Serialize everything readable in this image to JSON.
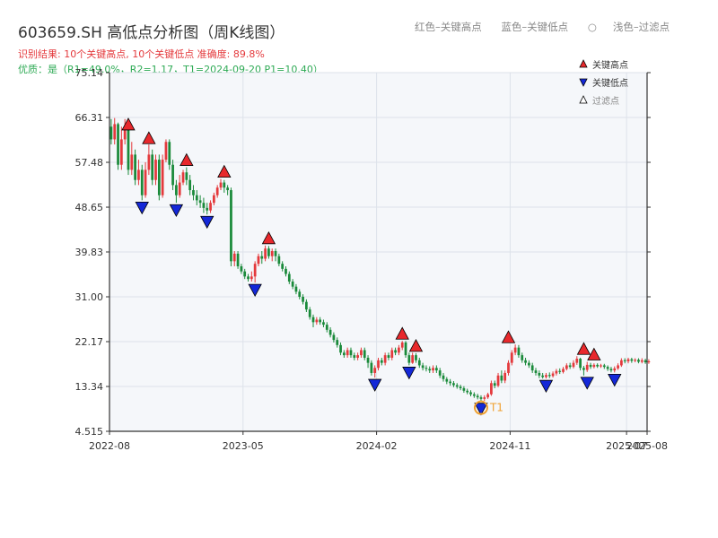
{
  "header": {
    "title": "603659.SH 高低点分析图（周K线图）",
    "result_text": "识别结果: 10个关键高点, 10个关键低点   准确度: 89.8%",
    "quality_text": "优质：是（R1=49.0%，R2=1.17，T1=2024-09-20 P1=10.40）"
  },
  "top_legend": {
    "red": "红色–关键高点",
    "blue": "蓝色–关键低点",
    "gray": "浅色–过滤点"
  },
  "colors": {
    "up": "#e4393c",
    "down": "#1a8a3a",
    "high_marker": "#e8282c",
    "low_marker": "#1428d8",
    "t1_ring": "#f0a030",
    "plot_bg": "#f5f7fa",
    "grid": "#dde2ea",
    "axis": "#333333"
  },
  "chart_data": {
    "type": "candlestick",
    "y_ticks": [
      "4.515",
      "13.34",
      "22.17",
      "31.00",
      "39.83",
      "48.65",
      "57.48",
      "66.31",
      "75.14"
    ],
    "ylim": [
      4.515,
      75.14
    ],
    "x_ticks": [
      "2022-08",
      "2023-05",
      "2024-02",
      "2024-11",
      "2025-07",
      "2025-08"
    ],
    "xlim": [
      0,
      157
    ],
    "x_tick_positions": [
      0,
      39,
      78,
      117,
      151,
      157
    ],
    "legend": [
      {
        "label": "关键高点",
        "marker": "triangle-up"
      },
      {
        "label": "关键低点",
        "marker": "triangle-down"
      },
      {
        "label": "过滤点",
        "marker": "triangle-up-hollow"
      }
    ],
    "annotation": {
      "label": "T1",
      "x": 108,
      "y": 10.4
    },
    "key_highs": [
      {
        "x": 5,
        "y": 63.5
      },
      {
        "x": 11,
        "y": 60.8
      },
      {
        "x": 22,
        "y": 56.5
      },
      {
        "x": 33,
        "y": 54.2
      },
      {
        "x": 46,
        "y": 41.1
      },
      {
        "x": 85,
        "y": 22.3
      },
      {
        "x": 89,
        "y": 19.9
      },
      {
        "x": 116,
        "y": 21.6
      },
      {
        "x": 138,
        "y": 19.3
      },
      {
        "x": 141,
        "y": 18.2
      }
    ],
    "key_lows": [
      {
        "x": 9,
        "y": 50.0
      },
      {
        "x": 19,
        "y": 49.5
      },
      {
        "x": 28,
        "y": 47.2
      },
      {
        "x": 42,
        "y": 33.8
      },
      {
        "x": 77,
        "y": 15.1
      },
      {
        "x": 87,
        "y": 17.5
      },
      {
        "x": 108,
        "y": 10.4
      },
      {
        "x": 127,
        "y": 14.9
      },
      {
        "x": 139,
        "y": 15.5
      },
      {
        "x": 147,
        "y": 16.1
      }
    ],
    "candles": [
      [
        64.5,
        62.0,
        66.0,
        61.0
      ],
      [
        62.0,
        65.0,
        66.2,
        61.0
      ],
      [
        65.0,
        57.0,
        65.3,
        56.0
      ],
      [
        57.0,
        62.0,
        64.5,
        56.0
      ],
      [
        62.0,
        64.0,
        66.0,
        61.0
      ],
      [
        64.0,
        56.0,
        64.3,
        55.0
      ],
      [
        56.0,
        59.0,
        61.5,
        55.0
      ],
      [
        59.0,
        54.0,
        60.0,
        53.0
      ],
      [
        54.0,
        56.0,
        58.0,
        53.0
      ],
      [
        56.0,
        51.0,
        57.0,
        50.0
      ],
      [
        51.0,
        56.0,
        57.5,
        50.5
      ],
      [
        56.0,
        59.0,
        61.0,
        55.0
      ],
      [
        59.0,
        54.0,
        60.0,
        53.0
      ],
      [
        54.0,
        58.0,
        59.0,
        53.0
      ],
      [
        58.0,
        51.0,
        59.0,
        50.0
      ],
      [
        51.0,
        58.0,
        59.0,
        50.5
      ],
      [
        58.0,
        61.5,
        62.0,
        57.5
      ],
      [
        61.5,
        57.0,
        62.0,
        56.0
      ],
      [
        57.0,
        53.0,
        58.0,
        52.0
      ],
      [
        53.0,
        51.0,
        54.0,
        49.5
      ],
      [
        51.0,
        53.5,
        55.0,
        50.5
      ],
      [
        53.5,
        55.5,
        56.0,
        53.0
      ],
      [
        55.5,
        54.0,
        56.5,
        53.0
      ],
      [
        54.0,
        52.0,
        55.0,
        51.0
      ],
      [
        52.0,
        51.0,
        53.0,
        50.0
      ],
      [
        51.0,
        50.0,
        52.0,
        49.0
      ],
      [
        50.0,
        49.5,
        51.0,
        48.5
      ],
      [
        49.5,
        48.5,
        50.5,
        47.5
      ],
      [
        48.5,
        48.0,
        49.5,
        47.2
      ],
      [
        48.0,
        49.5,
        50.0,
        47.5
      ],
      [
        49.5,
        51.0,
        51.5,
        49.0
      ],
      [
        51.0,
        52.5,
        53.0,
        50.5
      ],
      [
        52.5,
        53.5,
        54.2,
        52.0
      ],
      [
        53.5,
        52.5,
        54.0,
        51.5
      ],
      [
        52.5,
        52.0,
        53.0,
        51.0
      ],
      [
        52.0,
        38.0,
        52.5,
        37.0
      ],
      [
        38.0,
        39.5,
        40.0,
        37.0
      ],
      [
        39.5,
        37.0,
        40.0,
        36.5
      ],
      [
        37.0,
        36.0,
        37.5,
        35.5
      ],
      [
        36.0,
        35.0,
        36.5,
        34.5
      ],
      [
        35.0,
        34.5,
        35.5,
        34.0
      ],
      [
        34.5,
        35.0,
        36.0,
        34.0
      ],
      [
        35.0,
        37.5,
        38.0,
        33.8
      ],
      [
        37.5,
        39.0,
        39.5,
        37.0
      ],
      [
        39.0,
        38.5,
        40.0,
        37.5
      ],
      [
        38.5,
        40.5,
        41.1,
        38.0
      ],
      [
        40.5,
        39.0,
        41.0,
        38.5
      ],
      [
        39.0,
        40.0,
        40.5,
        38.0
      ],
      [
        40.0,
        39.0,
        40.5,
        38.0
      ],
      [
        39.0,
        37.5,
        39.5,
        37.0
      ],
      [
        37.5,
        36.5,
        38.0,
        36.0
      ],
      [
        36.5,
        35.5,
        37.0,
        35.0
      ],
      [
        35.5,
        34.0,
        36.0,
        33.5
      ],
      [
        34.0,
        33.0,
        34.5,
        32.5
      ],
      [
        33.0,
        32.0,
        33.5,
        31.5
      ],
      [
        32.0,
        31.0,
        32.5,
        30.5
      ],
      [
        31.0,
        30.0,
        31.5,
        29.5
      ],
      [
        30.0,
        28.5,
        30.5,
        28.0
      ],
      [
        28.5,
        27.0,
        29.0,
        26.5
      ],
      [
        27.0,
        26.0,
        27.5,
        25.0
      ],
      [
        26.0,
        26.5,
        27.0,
        25.5
      ],
      [
        26.5,
        26.0,
        27.0,
        25.5
      ],
      [
        26.0,
        25.5,
        26.5,
        25.0
      ],
      [
        25.5,
        24.5,
        26.0,
        24.0
      ],
      [
        24.5,
        23.5,
        25.0,
        23.0
      ],
      [
        23.5,
        22.5,
        24.0,
        22.0
      ],
      [
        22.5,
        21.5,
        23.0,
        21.0
      ],
      [
        21.5,
        20.0,
        22.0,
        19.5
      ],
      [
        20.0,
        19.5,
        20.5,
        19.0
      ],
      [
        19.5,
        20.5,
        21.0,
        19.0
      ],
      [
        20.5,
        19.5,
        21.0,
        19.0
      ],
      [
        19.5,
        19.0,
        20.0,
        18.5
      ],
      [
        19.0,
        19.5,
        20.0,
        18.5
      ],
      [
        19.5,
        20.5,
        21.0,
        19.0
      ],
      [
        20.5,
        19.0,
        21.0,
        18.5
      ],
      [
        19.0,
        18.0,
        19.5,
        17.0
      ],
      [
        18.0,
        16.0,
        18.5,
        15.5
      ],
      [
        16.0,
        17.0,
        17.5,
        15.1
      ],
      [
        17.0,
        18.5,
        19.0,
        16.5
      ],
      [
        18.5,
        18.0,
        19.0,
        17.5
      ],
      [
        18.0,
        19.5,
        20.0,
        17.5
      ],
      [
        19.5,
        19.0,
        20.0,
        18.5
      ],
      [
        19.0,
        20.5,
        21.0,
        18.5
      ],
      [
        20.5,
        20.0,
        21.0,
        19.5
      ],
      [
        20.0,
        21.0,
        21.5,
        19.5
      ],
      [
        21.0,
        22.0,
        22.3,
        20.5
      ],
      [
        22.0,
        19.5,
        22.3,
        19.0
      ],
      [
        19.5,
        18.0,
        20.0,
        17.5
      ],
      [
        18.0,
        19.5,
        20.0,
        17.8
      ],
      [
        19.5,
        18.5,
        19.9,
        18.0
      ],
      [
        18.5,
        17.5,
        19.0,
        17.0
      ],
      [
        17.5,
        17.0,
        18.0,
        16.5
      ],
      [
        17.0,
        16.8,
        17.5,
        16.3
      ],
      [
        16.8,
        16.5,
        17.3,
        16.0
      ],
      [
        16.5,
        17.0,
        17.5,
        16.0
      ],
      [
        17.0,
        16.5,
        17.5,
        16.0
      ],
      [
        16.5,
        15.5,
        17.0,
        15.0
      ],
      [
        15.5,
        14.8,
        16.0,
        14.3
      ],
      [
        14.8,
        14.3,
        15.2,
        13.8
      ],
      [
        14.3,
        14.0,
        14.8,
        13.5
      ],
      [
        14.0,
        13.6,
        14.4,
        13.2
      ],
      [
        13.6,
        13.3,
        14.0,
        12.9
      ],
      [
        13.3,
        13.0,
        13.7,
        12.6
      ],
      [
        13.0,
        12.5,
        13.4,
        12.1
      ],
      [
        12.5,
        12.2,
        12.9,
        11.8
      ],
      [
        12.2,
        11.8,
        12.6,
        11.4
      ],
      [
        11.8,
        11.5,
        12.2,
        11.1
      ],
      [
        11.5,
        11.2,
        11.9,
        10.8
      ],
      [
        11.2,
        10.9,
        11.6,
        10.4
      ],
      [
        10.9,
        11.2,
        11.6,
        10.5
      ],
      [
        11.2,
        11.8,
        12.1,
        10.9
      ],
      [
        11.8,
        14.0,
        14.5,
        11.5
      ],
      [
        14.0,
        13.5,
        14.5,
        13.0
      ],
      [
        13.5,
        15.5,
        16.0,
        13.2
      ],
      [
        15.5,
        14.5,
        16.5,
        14.0
      ],
      [
        14.5,
        16.0,
        16.5,
        14.0
      ],
      [
        16.0,
        18.0,
        18.5,
        15.5
      ],
      [
        18.0,
        20.0,
        20.5,
        17.5
      ],
      [
        20.0,
        21.0,
        21.6,
        19.5
      ],
      [
        21.0,
        19.5,
        21.5,
        19.0
      ],
      [
        19.5,
        18.5,
        20.0,
        18.0
      ],
      [
        18.5,
        18.0,
        19.0,
        17.5
      ],
      [
        18.0,
        17.5,
        18.5,
        17.0
      ],
      [
        17.5,
        16.5,
        18.0,
        16.0
      ],
      [
        16.5,
        16.0,
        17.0,
        15.5
      ],
      [
        16.0,
        15.5,
        16.5,
        15.0
      ],
      [
        15.5,
        15.2,
        16.0,
        14.9
      ],
      [
        15.2,
        15.6,
        16.0,
        14.9
      ],
      [
        15.6,
        15.4,
        16.1,
        15.0
      ],
      [
        15.4,
        15.9,
        16.3,
        15.1
      ],
      [
        15.9,
        16.4,
        16.8,
        15.5
      ],
      [
        16.4,
        16.2,
        16.9,
        15.8
      ],
      [
        16.2,
        16.8,
        17.2,
        15.9
      ],
      [
        16.8,
        17.5,
        17.9,
        16.5
      ],
      [
        17.5,
        17.2,
        18.0,
        16.8
      ],
      [
        17.2,
        18.0,
        18.5,
        16.9
      ],
      [
        18.0,
        18.8,
        19.3,
        17.6
      ],
      [
        18.8,
        17.0,
        19.0,
        16.5
      ],
      [
        17.0,
        16.6,
        17.4,
        15.5
      ],
      [
        16.6,
        17.6,
        18.2,
        16.2
      ],
      [
        17.6,
        17.2,
        18.0,
        16.8
      ],
      [
        17.2,
        17.6,
        17.9,
        16.9
      ],
      [
        17.6,
        17.3,
        17.9,
        17.0
      ],
      [
        17.3,
        17.5,
        17.8,
        17.0
      ],
      [
        17.5,
        17.2,
        17.8,
        16.8
      ],
      [
        17.2,
        16.8,
        17.5,
        16.4
      ],
      [
        16.8,
        16.5,
        17.2,
        16.1
      ],
      [
        16.5,
        16.9,
        17.3,
        16.1
      ],
      [
        16.9,
        17.5,
        17.9,
        16.6
      ],
      [
        17.5,
        18.5,
        18.9,
        17.2
      ],
      [
        18.5,
        18.3,
        18.9,
        17.9
      ],
      [
        18.3,
        18.7,
        19.0,
        17.9
      ],
      [
        18.7,
        18.4,
        19.0,
        18.0
      ],
      [
        18.4,
        18.6,
        18.9,
        18.1
      ],
      [
        18.6,
        18.2,
        18.9,
        17.9
      ],
      [
        18.2,
        18.5,
        18.9,
        17.9
      ],
      [
        18.5,
        18.1,
        18.8,
        17.8
      ],
      [
        18.1,
        18.3,
        18.7,
        17.8
      ]
    ]
  }
}
